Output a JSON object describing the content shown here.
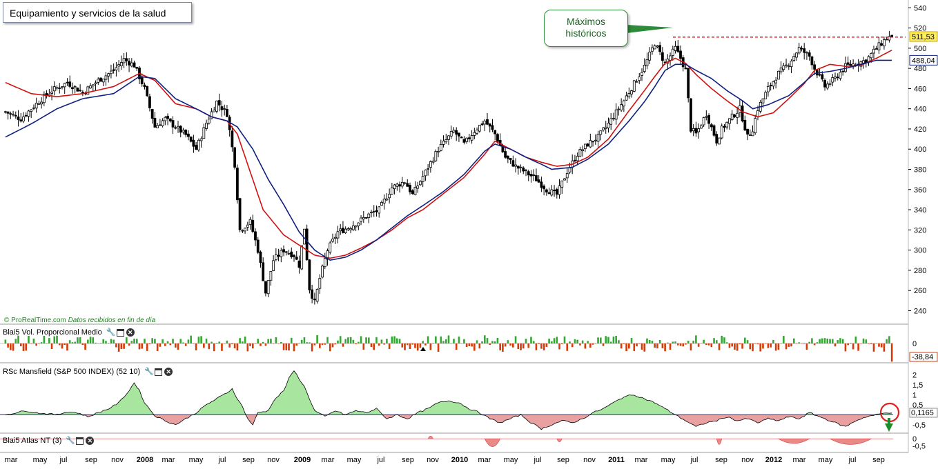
{
  "title": "Equipamiento y servicios de la salud",
  "credit": {
    "brand": "© ProRealTime.com",
    "note": "Datos recibidos en fin de día"
  },
  "annotation": {
    "line1": "Máximos",
    "line2": "históricos"
  },
  "colors": {
    "bull": "#ffffff",
    "bear": "#000000",
    "ma_fast": "#d01010",
    "ma_slow": "#10207f",
    "vol_up": "#32a832",
    "vol_down": "#d23c0a",
    "rsc_pos_fill": "#a8e6a0",
    "rsc_neg_fill": "#e8a0a0",
    "baseline": "#3040a0",
    "resistance": "#e00000",
    "accent_circle": "#e02020",
    "arrow": "#1e8c2a"
  },
  "panels": {
    "price": {
      "label": ""
    },
    "volume": {
      "label": "Blai5 Vol. Proporcional Medio",
      "current_value": "-38,84",
      "zero_label": "0"
    },
    "rsc": {
      "label": "RSc Mansfield (S&P 500 INDEX) (52 10)",
      "current_value": "0,1165"
    },
    "atlas": {
      "label": "Blai5 Atlas NT (3)",
      "zero_label": "0"
    }
  },
  "icons": [
    "wrench-icon",
    "window-icon",
    "close-icon"
  ],
  "chart_data": {
    "type": "candlestick",
    "timeframe": "weekly",
    "x_labels": [
      "mar",
      "may",
      "jul",
      "sep",
      "nov",
      "2008",
      "mar",
      "may",
      "jul",
      "sep",
      "nov",
      "2009",
      "mar",
      "may",
      "jul",
      "sep",
      "nov",
      "2010",
      "mar",
      "may",
      "jul",
      "sep",
      "nov",
      "2011",
      "mar",
      "may",
      "jul",
      "sep",
      "nov",
      "2012",
      "mar",
      "may",
      "jul",
      "sep"
    ],
    "year_labels": [
      "2008",
      "2009",
      "2010",
      "2011",
      "2012"
    ],
    "y_ticks": [
      240,
      260,
      280,
      300,
      320,
      340,
      360,
      380,
      400,
      420,
      440,
      460,
      480,
      500,
      520,
      540
    ],
    "ylim": [
      228,
      545
    ],
    "last_price": 511.53,
    "last_price_label": "511,53",
    "ma_value": 488.04,
    "ma_value_label": "488,04",
    "resistance_level": 511,
    "close_keypoints": [
      [
        0,
        437
      ],
      [
        6,
        430
      ],
      [
        12,
        445
      ],
      [
        18,
        458
      ],
      [
        24,
        466
      ],
      [
        30,
        456
      ],
      [
        36,
        468
      ],
      [
        42,
        478
      ],
      [
        46,
        489
      ],
      [
        50,
        483
      ],
      [
        54,
        460
      ],
      [
        58,
        422
      ],
      [
        62,
        430
      ],
      [
        66,
        422
      ],
      [
        70,
        414
      ],
      [
        74,
        400
      ],
      [
        78,
        426
      ],
      [
        82,
        447
      ],
      [
        86,
        435
      ],
      [
        89,
        385
      ],
      [
        91,
        320
      ],
      [
        95,
        328
      ],
      [
        98,
        300
      ],
      [
        101,
        258
      ],
      [
        104,
        290
      ],
      [
        108,
        300
      ],
      [
        112,
        295
      ],
      [
        114,
        285
      ],
      [
        116,
        322
      ],
      [
        118,
        262
      ],
      [
        120,
        248
      ],
      [
        122,
        272
      ],
      [
        125,
        300
      ],
      [
        129,
        318
      ],
      [
        133,
        322
      ],
      [
        137,
        328
      ],
      [
        141,
        335
      ],
      [
        145,
        340
      ],
      [
        150,
        362
      ],
      [
        155,
        368
      ],
      [
        158,
        355
      ],
      [
        162,
        373
      ],
      [
        168,
        400
      ],
      [
        174,
        418
      ],
      [
        178,
        405
      ],
      [
        182,
        418
      ],
      [
        186,
        428
      ],
      [
        190,
        415
      ],
      [
        194,
        392
      ],
      [
        198,
        383
      ],
      [
        202,
        377
      ],
      [
        206,
        370
      ],
      [
        210,
        360
      ],
      [
        214,
        355
      ],
      [
        218,
        378
      ],
      [
        222,
        395
      ],
      [
        226,
        405
      ],
      [
        230,
        412
      ],
      [
        234,
        425
      ],
      [
        240,
        448
      ],
      [
        244,
        465
      ],
      [
        248,
        482
      ],
      [
        252,
        505
      ],
      [
        256,
        485
      ],
      [
        260,
        500
      ],
      [
        262,
        490
      ],
      [
        264,
        478
      ],
      [
        266,
        420
      ],
      [
        268,
        415
      ],
      [
        272,
        435
      ],
      [
        276,
        408
      ],
      [
        278,
        420
      ],
      [
        282,
        432
      ],
      [
        285,
        440
      ],
      [
        288,
        412
      ],
      [
        290,
        420
      ],
      [
        292,
        440
      ],
      [
        296,
        460
      ],
      [
        300,
        475
      ],
      [
        304,
        485
      ],
      [
        308,
        500
      ],
      [
        312,
        492
      ],
      [
        314,
        480
      ],
      [
        318,
        462
      ],
      [
        322,
        470
      ],
      [
        326,
        482
      ],
      [
        330,
        485
      ],
      [
        334,
        488
      ],
      [
        338,
        500
      ],
      [
        342,
        510
      ],
      [
        344,
        511.53
      ]
    ],
    "ma_fast_keypoints": [
      [
        0,
        466
      ],
      [
        10,
        455
      ],
      [
        20,
        452
      ],
      [
        30,
        455
      ],
      [
        42,
        462
      ],
      [
        52,
        475
      ],
      [
        58,
        468
      ],
      [
        66,
        445
      ],
      [
        74,
        440
      ],
      [
        80,
        432
      ],
      [
        86,
        428
      ],
      [
        90,
        415
      ],
      [
        94,
        385
      ],
      [
        100,
        340
      ],
      [
        108,
        315
      ],
      [
        114,
        305
      ],
      [
        120,
        295
      ],
      [
        126,
        292
      ],
      [
        132,
        295
      ],
      [
        138,
        302
      ],
      [
        144,
        310
      ],
      [
        150,
        320
      ],
      [
        156,
        332
      ],
      [
        162,
        340
      ],
      [
        170,
        356
      ],
      [
        178,
        372
      ],
      [
        186,
        395
      ],
      [
        190,
        408
      ],
      [
        196,
        400
      ],
      [
        202,
        392
      ],
      [
        208,
        387
      ],
      [
        214,
        383
      ],
      [
        220,
        385
      ],
      [
        226,
        392
      ],
      [
        234,
        410
      ],
      [
        242,
        438
      ],
      [
        248,
        458
      ],
      [
        252,
        472
      ],
      [
        256,
        485
      ],
      [
        260,
        490
      ],
      [
        264,
        485
      ],
      [
        268,
        474
      ],
      [
        274,
        460
      ],
      [
        280,
        448
      ],
      [
        286,
        437
      ],
      [
        292,
        432
      ],
      [
        298,
        436
      ],
      [
        304,
        450
      ],
      [
        310,
        465
      ],
      [
        314,
        478
      ],
      [
        320,
        484
      ],
      [
        326,
        482
      ],
      [
        332,
        483
      ],
      [
        338,
        490
      ],
      [
        344,
        498
      ]
    ],
    "ma_slow_keypoints": [
      [
        0,
        412
      ],
      [
        10,
        425
      ],
      [
        20,
        440
      ],
      [
        30,
        450
      ],
      [
        42,
        455
      ],
      [
        52,
        472
      ],
      [
        58,
        470
      ],
      [
        66,
        450
      ],
      [
        74,
        440
      ],
      [
        80,
        432
      ],
      [
        86,
        428
      ],
      [
        90,
        422
      ],
      [
        96,
        400
      ],
      [
        102,
        370
      ],
      [
        108,
        345
      ],
      [
        114,
        318
      ],
      [
        120,
        300
      ],
      [
        126,
        290
      ],
      [
        132,
        293
      ],
      [
        138,
        300
      ],
      [
        144,
        310
      ],
      [
        150,
        322
      ],
      [
        156,
        334
      ],
      [
        162,
        344
      ],
      [
        170,
        358
      ],
      [
        178,
        375
      ],
      [
        186,
        398
      ],
      [
        190,
        405
      ],
      [
        196,
        400
      ],
      [
        202,
        392
      ],
      [
        208,
        385
      ],
      [
        212,
        380
      ],
      [
        220,
        382
      ],
      [
        226,
        390
      ],
      [
        234,
        405
      ],
      [
        242,
        428
      ],
      [
        248,
        447
      ],
      [
        252,
        462
      ],
      [
        256,
        478
      ],
      [
        260,
        484
      ],
      [
        264,
        484
      ],
      [
        268,
        478
      ],
      [
        274,
        470
      ],
      [
        280,
        458
      ],
      [
        286,
        448
      ],
      [
        290,
        440
      ],
      [
        296,
        444
      ],
      [
        304,
        453
      ],
      [
        310,
        466
      ],
      [
        314,
        475
      ],
      [
        320,
        477
      ],
      [
        326,
        480
      ],
      [
        332,
        484
      ],
      [
        338,
        488
      ],
      [
        344,
        488.04
      ]
    ],
    "rsc_keypoints": [
      [
        0,
        0.0
      ],
      [
        4,
        0.1
      ],
      [
        8,
        0.2
      ],
      [
        12,
        0.1
      ],
      [
        16,
        0.05
      ],
      [
        20,
        0.0
      ],
      [
        24,
        0.15
      ],
      [
        28,
        0.1
      ],
      [
        32,
        -0.1
      ],
      [
        36,
        0.1
      ],
      [
        40,
        0.3
      ],
      [
        44,
        0.6
      ],
      [
        48,
        1.2
      ],
      [
        50,
        1.6
      ],
      [
        52,
        1.2
      ],
      [
        54,
        0.6
      ],
      [
        58,
        -0.05
      ],
      [
        62,
        -0.3
      ],
      [
        66,
        -0.5
      ],
      [
        70,
        -0.2
      ],
      [
        74,
        0.1
      ],
      [
        78,
        0.5
      ],
      [
        82,
        0.8
      ],
      [
        86,
        1.1
      ],
      [
        88,
        1.3
      ],
      [
        90,
        0.8
      ],
      [
        92,
        0.4
      ],
      [
        94,
        -0.2
      ],
      [
        96,
        -0.5
      ],
      [
        98,
        0.1
      ],
      [
        102,
        0.2
      ],
      [
        104,
        0.7
      ],
      [
        108,
        1.2
      ],
      [
        110,
        1.8
      ],
      [
        112,
        2.2
      ],
      [
        114,
        1.8
      ],
      [
        116,
        1.4
      ],
      [
        118,
        0.8
      ],
      [
        120,
        0.2
      ],
      [
        124,
        -0.1
      ],
      [
        128,
        0.2
      ],
      [
        132,
        0.0
      ],
      [
        136,
        0.2
      ],
      [
        140,
        0.1
      ],
      [
        144,
        0.3
      ],
      [
        148,
        -0.2
      ],
      [
        152,
        0.0
      ],
      [
        156,
        -0.2
      ],
      [
        160,
        0.1
      ],
      [
        164,
        0.3
      ],
      [
        168,
        0.6
      ],
      [
        172,
        0.7
      ],
      [
        176,
        0.6
      ],
      [
        180,
        0.3
      ],
      [
        184,
        0.1
      ],
      [
        188,
        -0.2
      ],
      [
        192,
        -0.4
      ],
      [
        196,
        -0.2
      ],
      [
        200,
        0.0
      ],
      [
        204,
        -0.4
      ],
      [
        208,
        -0.7
      ],
      [
        212,
        -0.5
      ],
      [
        216,
        -0.3
      ],
      [
        220,
        -0.4
      ],
      [
        224,
        -0.2
      ],
      [
        228,
        0.1
      ],
      [
        232,
        0.3
      ],
      [
        236,
        0.6
      ],
      [
        240,
        0.9
      ],
      [
        244,
        1.0
      ],
      [
        248,
        0.8
      ],
      [
        252,
        0.6
      ],
      [
        256,
        0.3
      ],
      [
        260,
        0.0
      ],
      [
        264,
        -0.3
      ],
      [
        268,
        -0.6
      ],
      [
        272,
        -0.4
      ],
      [
        276,
        -0.3
      ],
      [
        280,
        -0.1
      ],
      [
        284,
        -0.3
      ],
      [
        288,
        -0.2
      ],
      [
        292,
        -0.4
      ],
      [
        296,
        -0.2
      ],
      [
        300,
        -0.3
      ],
      [
        304,
        -0.1
      ],
      [
        308,
        -0.2
      ],
      [
        312,
        0.1
      ],
      [
        314,
        0.0
      ],
      [
        318,
        -0.2
      ],
      [
        322,
        -0.4
      ],
      [
        326,
        -0.6
      ],
      [
        330,
        -0.3
      ],
      [
        334,
        -0.1
      ],
      [
        338,
        0.0
      ],
      [
        342,
        0.1
      ],
      [
        344,
        0.1165
      ]
    ],
    "rsc_ylim": [
      -0.85,
      2.25
    ],
    "rsc_ticks": [
      "2",
      "1,5",
      "1",
      "0,5",
      "0,1165",
      "-0,5"
    ],
    "atlas_segments": [
      [
        164,
        166,
        0.1
      ],
      [
        186,
        192,
        -0.8
      ],
      [
        214,
        216,
        -0.15
      ],
      [
        276,
        278,
        -0.5
      ],
      [
        300,
        312,
        -0.35
      ],
      [
        320,
        336,
        -0.5
      ]
    ],
    "atlas_ylim": [
      -0.9,
      0.2
    ],
    "atlas_ticks": [
      "0",
      "-0,5"
    ]
  }
}
